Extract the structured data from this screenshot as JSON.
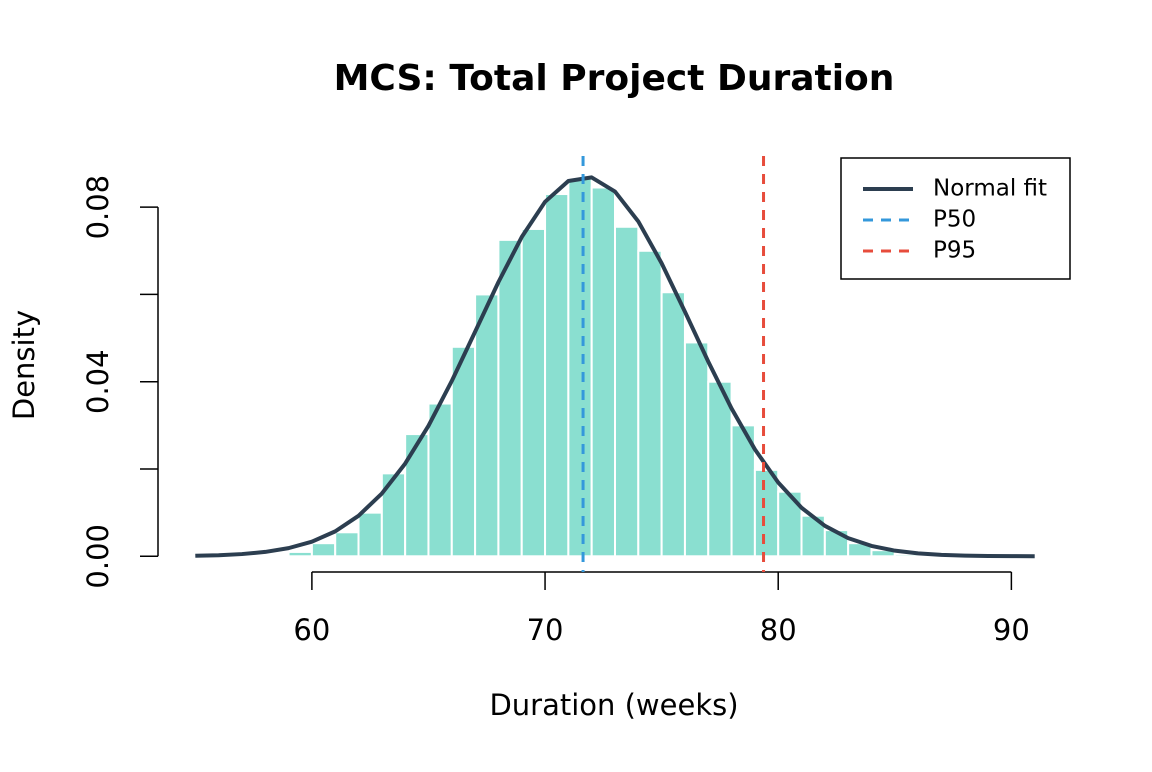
{
  "chart_data": {
    "type": "histogram",
    "title": "MCS: Total Project Duration",
    "x_label": "Duration (weeks)",
    "y_label": "Density",
    "bins": [
      58,
      59,
      60,
      61,
      62,
      63,
      64,
      65,
      66,
      67,
      68,
      69,
      70,
      71,
      72,
      73,
      74,
      75,
      76,
      77,
      78,
      79,
      80,
      81,
      82,
      83,
      84,
      85,
      86
    ],
    "values": [
      0.0003,
      0.001,
      0.003,
      0.0055,
      0.01,
      0.019,
      0.028,
      0.035,
      0.048,
      0.06,
      0.0725,
      0.075,
      0.083,
      0.0866,
      0.0845,
      0.0755,
      0.07,
      0.0605,
      0.049,
      0.04,
      0.03,
      0.0198,
      0.0148,
      0.0093,
      0.006,
      0.003,
      0.0014,
      0.0005
    ],
    "color": "#8adfd0",
    "xlim": [
      53.4,
      92.6
    ],
    "ylim": [
      -0.0036,
      0.0908
    ],
    "xticks": [
      60,
      70,
      80,
      90
    ],
    "yticks": [
      {
        "value": 0,
        "label": "0.00"
      },
      {
        "value": 0.04,
        "label": "0.04"
      },
      {
        "value": 0.08,
        "label": "0.08"
      }
    ],
    "yminor_ticks": [
      0.02,
      0.06
    ],
    "fit": {
      "name": "Normal fit",
      "color": "#2c3e50",
      "x": [
        55,
        56,
        57,
        58,
        59,
        60,
        61,
        62,
        63,
        64,
        65,
        66,
        67,
        68,
        69,
        70,
        71,
        72,
        73,
        74,
        75,
        76,
        77,
        78,
        79,
        80,
        81,
        82,
        83,
        84,
        85,
        86,
        87,
        88,
        89,
        90,
        91
      ],
      "values": [
        0.00011,
        0.00025,
        0.00051,
        0.001,
        0.00187,
        0.00335,
        0.00571,
        0.00928,
        0.01438,
        0.02124,
        0.0299,
        0.04017,
        0.05144,
        0.06282,
        0.07315,
        0.08122,
        0.08599,
        0.08681,
        0.08357,
        0.07672,
        0.06715,
        0.05604,
        0.04461,
        0.03385,
        0.02449,
        0.0169,
        0.01112,
        0.00698,
        0.00417,
        0.00238,
        0.00129,
        0.00067,
        0.00033,
        0.00016,
        7e-05,
        3e-05,
        1e-05
      ]
    },
    "vlines": [
      {
        "name": "P50",
        "value": 71.63,
        "color": "#3498db"
      },
      {
        "name": "P95",
        "value": 79.37,
        "color": "#e74c3c"
      }
    ],
    "legend": "top-right"
  }
}
